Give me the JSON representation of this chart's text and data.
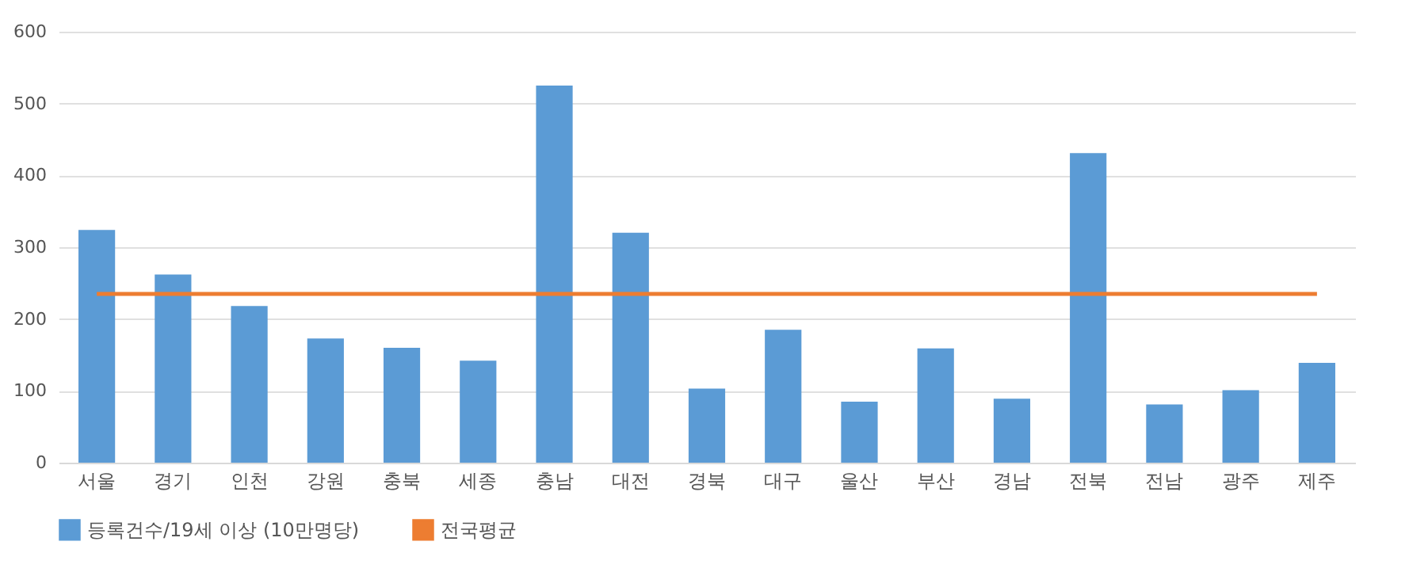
{
  "chart_data": {
    "type": "bar",
    "categories": [
      "서울",
      "경기",
      "인천",
      "강원",
      "충북",
      "세종",
      "충남",
      "대전",
      "경북",
      "대구",
      "울산",
      "부산",
      "경남",
      "전북",
      "전남",
      "광주",
      "제주"
    ],
    "series": [
      {
        "name": "등록건수/19세 이상 (10만명당)",
        "color": "#5b9bd5",
        "values": [
          324,
          262,
          218,
          173,
          160,
          142,
          525,
          320,
          103,
          185,
          85,
          159,
          89,
          431,
          81,
          101,
          139
        ]
      },
      {
        "name": "전국평균",
        "type": "line",
        "color": "#ed7d31",
        "values": [
          235,
          235,
          235,
          235,
          235,
          235,
          235,
          235,
          235,
          235,
          235,
          235,
          235,
          235,
          235,
          235,
          235
        ]
      }
    ],
    "ylim": [
      0,
      600
    ],
    "yticks": [
      0,
      100,
      200,
      300,
      400,
      500,
      600
    ],
    "grid": "y",
    "legend": "bottom"
  }
}
